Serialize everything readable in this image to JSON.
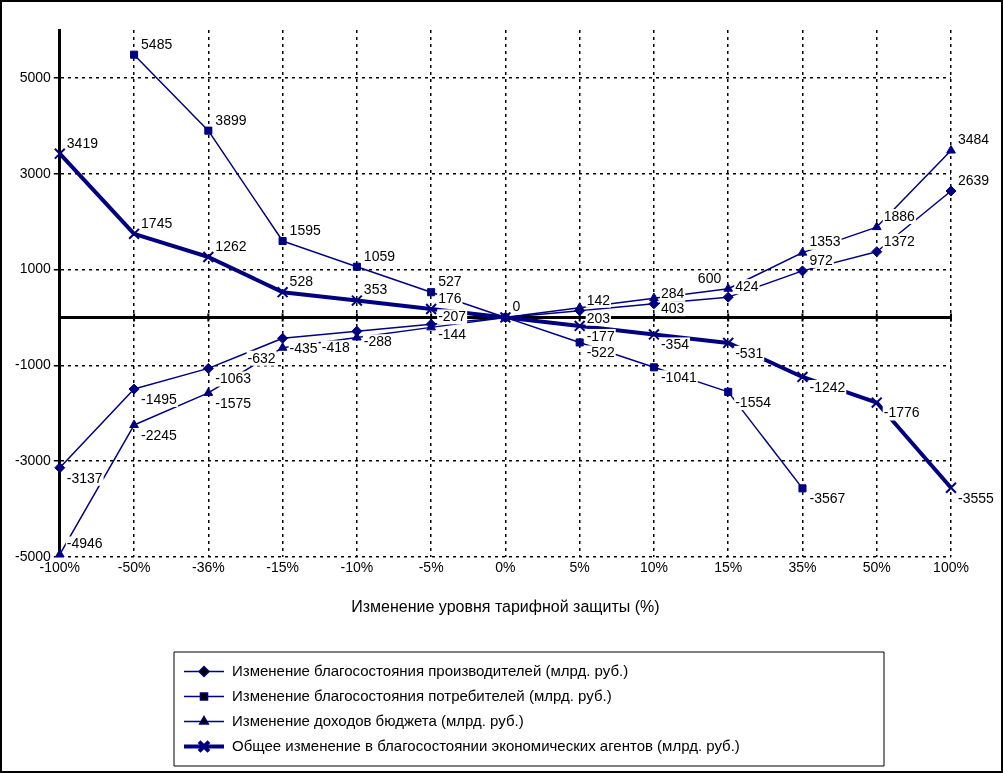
{
  "chart_data": {
    "type": "line",
    "xlabel": "Изменение уровня тарифной защиты (%)",
    "categories": [
      "-100%",
      "-50%",
      "-36%",
      "-15%",
      "-10%",
      "-5%",
      "0%",
      "5%",
      "10%",
      "15%",
      "35%",
      "50%",
      "100%"
    ],
    "series": [
      {
        "name": "Изменение благосостояния производителей (млрд. руб.)",
        "color": "#000080",
        "marker": "diamond",
        "values": [
          -3137,
          -1495,
          -1063,
          -435,
          -288,
          -144,
          0,
          142,
          284,
          424,
          972,
          1372,
          2639
        ],
        "value_labels": [
          "-3137",
          "-1495",
          "-1063",
          "-435",
          "-288",
          "-144",
          null,
          "142",
          "284",
          "424",
          "972",
          "1372",
          "2639"
        ]
      },
      {
        "name": "Изменение благосостояния потребителей (млрд. руб.)",
        "color": "#000080",
        "marker": "square",
        "values": [
          null,
          5485,
          3899,
          1595,
          1059,
          527,
          0,
          -522,
          -1041,
          -1554,
          -3567,
          null,
          null
        ],
        "value_labels": [
          null,
          "5485",
          "3899",
          "1595",
          "1059",
          "527",
          "0",
          "-522",
          "-1041",
          "-1554",
          "-3567",
          null,
          null
        ]
      },
      {
        "name": "Изменение доходов бюджета (млрд. руб.)",
        "color": "#000080",
        "marker": "triangle",
        "values": [
          -4946,
          -2245,
          -1575,
          -632,
          -418,
          -207,
          0,
          203,
          403,
          600,
          1353,
          1886,
          3484
        ],
        "value_labels": [
          "-4946",
          "-2245",
          "-1575",
          "-632",
          "-418",
          "-207",
          null,
          "203",
          "403",
          "600",
          "1353",
          "1886",
          "3484"
        ]
      },
      {
        "name": "Общее изменение в благосостоянии экономических агентов (млрд. руб.)",
        "color": "#000080",
        "marker": "cross",
        "values": [
          3419,
          1745,
          1262,
          528,
          353,
          176,
          0,
          -177,
          -354,
          -531,
          -1242,
          -1776,
          -3555
        ],
        "value_labels": [
          "3419",
          "1745",
          "1262",
          "528",
          "353",
          "176",
          null,
          "-177",
          "-354",
          "-531",
          "-1242",
          "-1776",
          "-3555"
        ]
      }
    ],
    "ylim": [
      -5000,
      6000
    ],
    "yticks": [
      -5000,
      -3000,
      -1000,
      1000,
      3000,
      5000
    ],
    "grid": true,
    "legend": "bottom"
  }
}
